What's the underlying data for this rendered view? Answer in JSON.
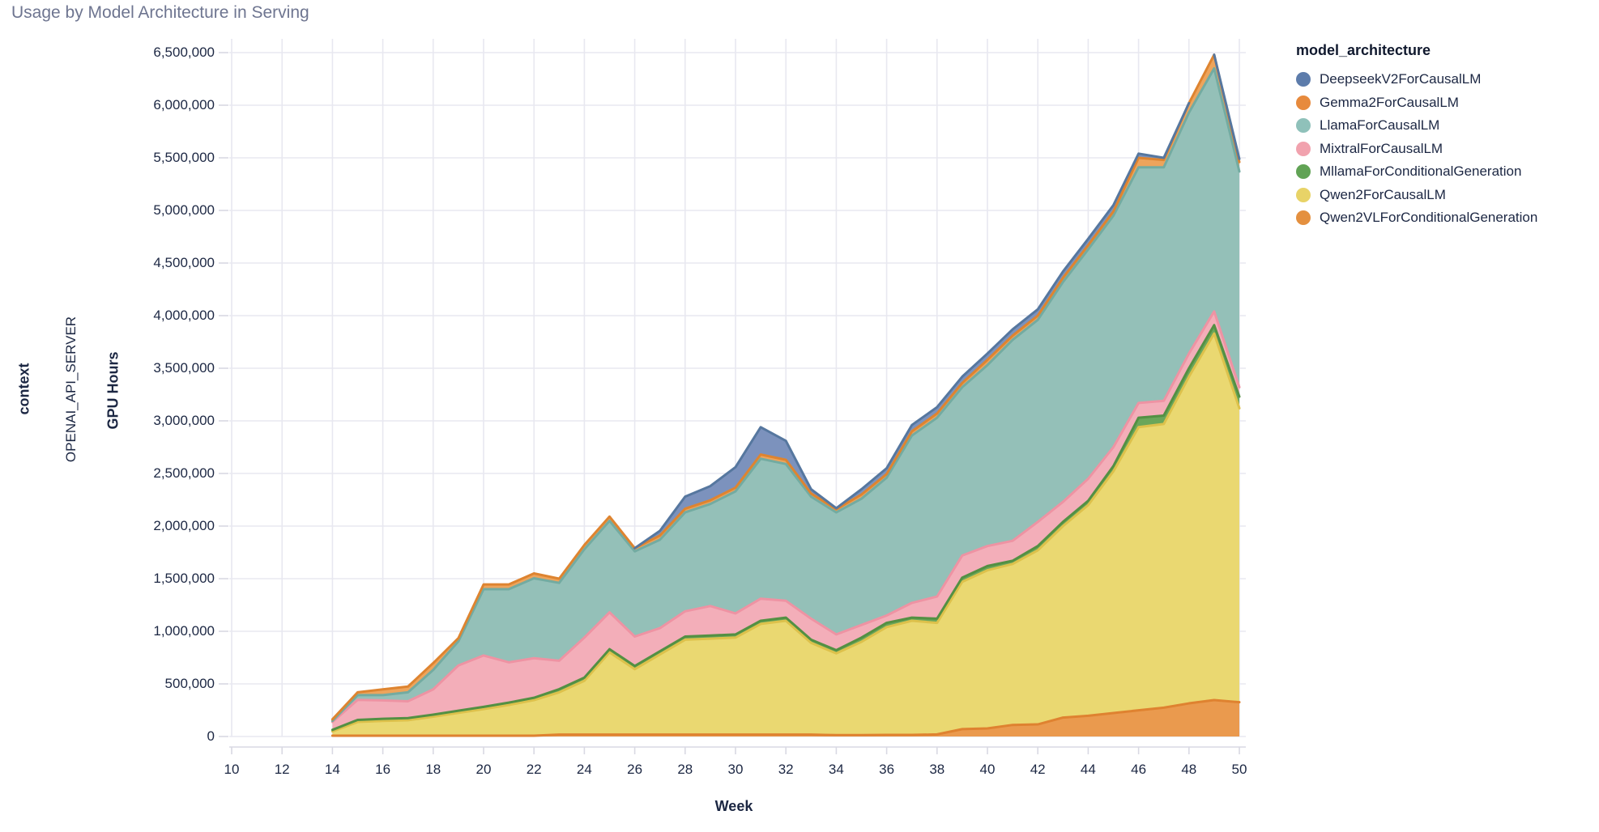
{
  "title": "Usage by Model Architecture in Serving",
  "facet": {
    "title": "context",
    "value": "OPENAI_API_SERVER"
  },
  "legend": {
    "title": "model_architecture"
  },
  "x_axis": {
    "title": "Week"
  },
  "y_axis": {
    "title": "GPU Hours"
  },
  "chart_data": {
    "type": "area",
    "stacked": true,
    "title": "Usage by Model Architecture in Serving",
    "xlabel": "Week",
    "ylabel": "GPU Hours",
    "x_range": [
      10,
      50
    ],
    "y_range": [
      0,
      6500000
    ],
    "grid": true,
    "legend_position": "right",
    "x_ticks": [
      10,
      12,
      14,
      16,
      18,
      20,
      22,
      24,
      26,
      28,
      30,
      32,
      34,
      36,
      38,
      40,
      42,
      44,
      46,
      48,
      50
    ],
    "y_ticks": [
      "0",
      "500,000",
      "1,000,000",
      "1,500,000",
      "2,000,000",
      "2,500,000",
      "3,000,000",
      "3,500,000",
      "4,000,000",
      "4,500,000",
      "5,000,000",
      "5,500,000",
      "6,000,000",
      "6,500,000"
    ],
    "weeks": [
      14,
      15,
      16,
      17,
      18,
      19,
      20,
      21,
      22,
      23,
      24,
      25,
      26,
      27,
      28,
      29,
      30,
      31,
      32,
      33,
      34,
      35,
      36,
      37,
      38,
      39,
      40,
      41,
      42,
      43,
      44,
      45,
      46,
      47,
      48,
      49,
      50
    ],
    "series": [
      {
        "name": "DeepseekV2ForCausalLM",
        "color": "#5d7cab",
        "fill": "#7c92bd",
        "stroke": "#56779f",
        "values": [
          0,
          0,
          0,
          0,
          0,
          0,
          0,
          0,
          0,
          0,
          0,
          0,
          0,
          45000,
          115000,
          135000,
          195000,
          260000,
          180000,
          40000,
          10000,
          50000,
          55000,
          60000,
          60000,
          60000,
          60000,
          60000,
          60000,
          60000,
          60000,
          60000,
          40000,
          20000,
          0,
          0,
          30000
        ]
      },
      {
        "name": "Gemma2ForCausalLM",
        "color": "#e78a3d",
        "fill": "#eda45c",
        "stroke": "#de8430",
        "values": [
          15000,
          27000,
          55000,
          55000,
          65000,
          30000,
          45000,
          45000,
          46000,
          40000,
          40000,
          40000,
          30000,
          40000,
          35000,
          35000,
          35000,
          40000,
          40000,
          30000,
          30000,
          40000,
          35000,
          40000,
          40000,
          40000,
          50000,
          40000,
          40000,
          40000,
          40000,
          40000,
          90000,
          70000,
          90000,
          130000,
          90000
        ]
      },
      {
        "name": "LlamaForCausalLM",
        "color": "#8fc1ba",
        "fill": "#94c0b8",
        "stroke": "#73aba1",
        "values": [
          10000,
          45000,
          50000,
          85000,
          185000,
          230000,
          630000,
          695000,
          760000,
          740000,
          840000,
          870000,
          810000,
          840000,
          940000,
          970000,
          1160000,
          1330000,
          1300000,
          1160000,
          1160000,
          1200000,
          1310000,
          1590000,
          1700000,
          1600000,
          1720000,
          1910000,
          1920000,
          2090000,
          2180000,
          2200000,
          2240000,
          2220000,
          2290000,
          2310000,
          2050000
        ]
      },
      {
        "name": "MixtralForCausalLM",
        "color": "#f1a2ae",
        "fill": "#f3aeb9",
        "stroke": "#ee93a3",
        "values": [
          75000,
          190000,
          175000,
          160000,
          240000,
          430000,
          488000,
          383000,
          376000,
          270000,
          380000,
          350000,
          280000,
          220000,
          240000,
          280000,
          200000,
          210000,
          160000,
          200000,
          150000,
          120000,
          70000,
          140000,
          210000,
          210000,
          190000,
          190000,
          230000,
          190000,
          210000,
          180000,
          140000,
          140000,
          140000,
          130000,
          90000
        ]
      },
      {
        "name": "MllamaForConditionalGeneration",
        "color": "#61a355",
        "fill": "#6aa65a",
        "stroke": "#539043",
        "values": [
          15000,
          20000,
          20000,
          20000,
          20000,
          20000,
          22000,
          22000,
          22000,
          30000,
          30000,
          30000,
          30000,
          30000,
          30000,
          30000,
          30000,
          30000,
          30000,
          30000,
          30000,
          40000,
          40000,
          30000,
          40000,
          40000,
          40000,
          30000,
          40000,
          40000,
          40000,
          50000,
          90000,
          80000,
          80000,
          80000,
          110000
        ]
      },
      {
        "name": "Qwen2ForCausalLM",
        "color": "#e8d367",
        "fill": "#ead871",
        "stroke": "#ddc14b",
        "values": [
          40000,
          130000,
          140000,
          147000,
          180000,
          217000,
          252000,
          292000,
          338000,
          402000,
          512000,
          782000,
          622000,
          762000,
          902000,
          912000,
          922000,
          1052000,
          1082000,
          872000,
          777000,
          887000,
          1025000,
          1085000,
          1060000,
          1400000,
          1503000,
          1530000,
          1655000,
          1820000,
          2003000,
          2297000,
          2691000,
          2696000,
          3105000,
          3484000,
          2794000
        ]
      },
      {
        "name": "Qwen2VLForConditionalGeneration",
        "color": "#e4903f",
        "fill": "#ea9a4e",
        "stroke": "#df8230",
        "values": [
          8000,
          8000,
          8000,
          8000,
          8000,
          8000,
          8000,
          8000,
          8000,
          18000,
          18000,
          18000,
          18000,
          18000,
          18000,
          18000,
          18000,
          18000,
          18000,
          18000,
          13000,
          13000,
          15000,
          15000,
          20000,
          70000,
          77000,
          110000,
          115000,
          180000,
          197000,
          223000,
          249000,
          274000,
          315000,
          346000,
          326000
        ]
      }
    ]
  }
}
